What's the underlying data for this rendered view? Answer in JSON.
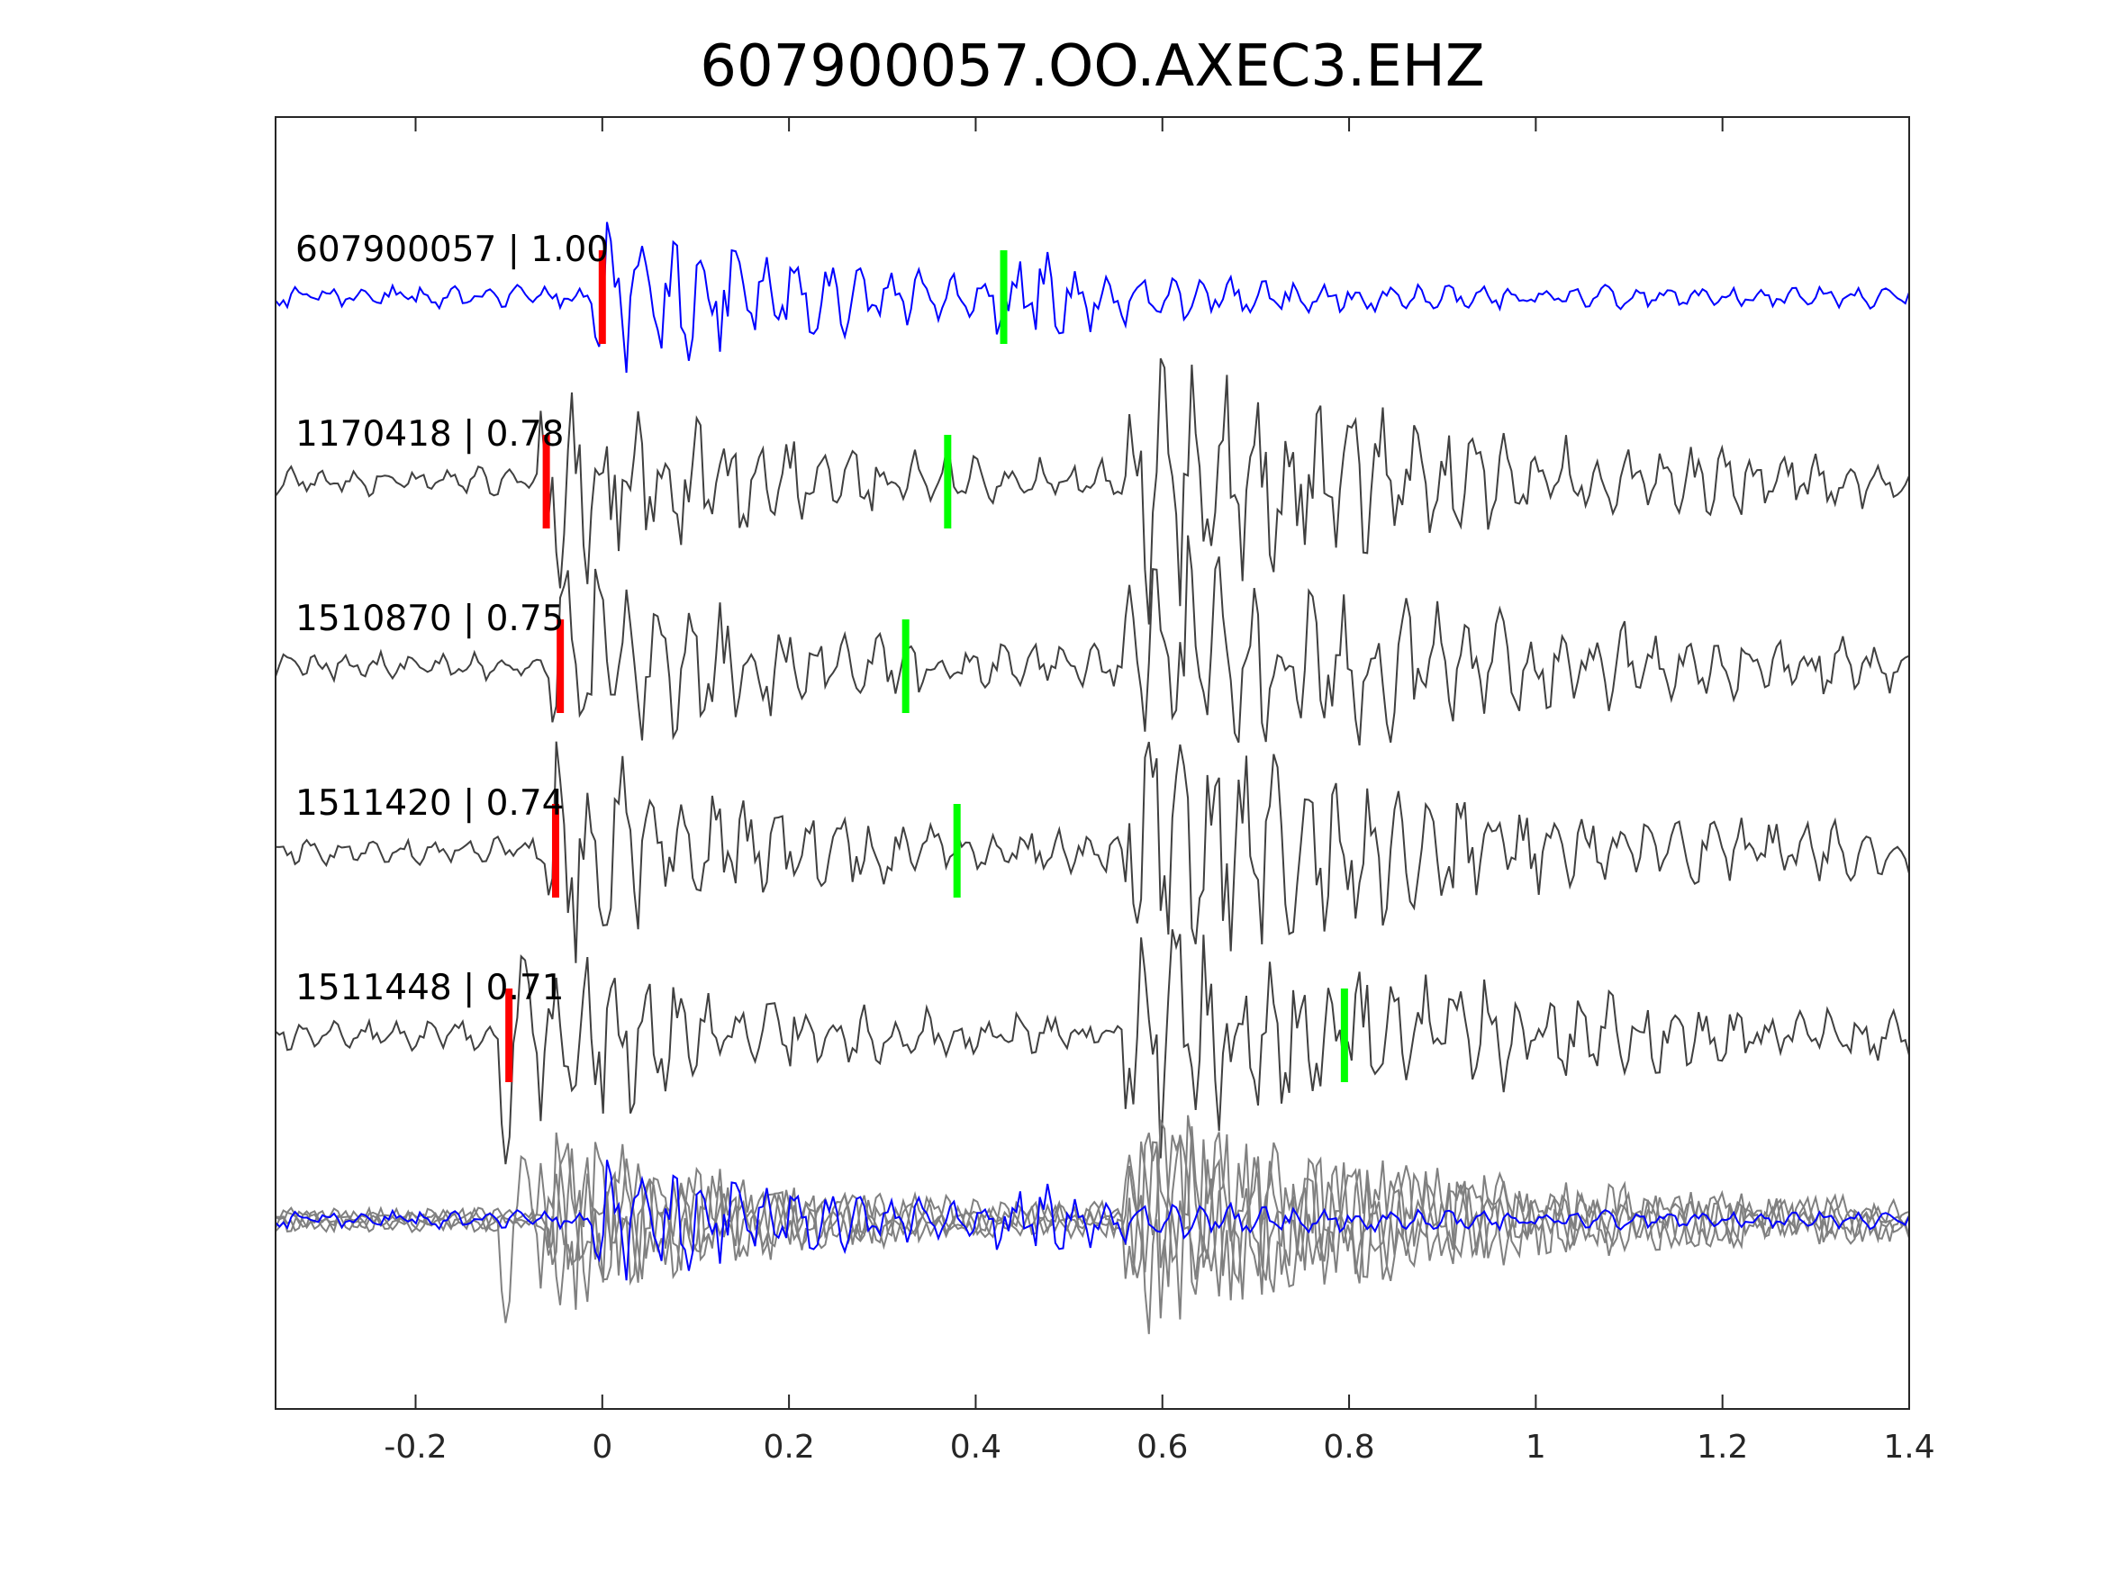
{
  "chart_data": {
    "type": "line",
    "title": "607900057.OO.AXEC3.EHZ",
    "xlabel": "",
    "ylabel": "",
    "xlim": [
      -0.35,
      1.4
    ],
    "x_ticks": [
      -0.2,
      0,
      0.2,
      0.4,
      0.6,
      0.8,
      1,
      1.2,
      1.4
    ],
    "x_tick_labels": [
      "-0.2",
      "0",
      "0.2",
      "0.4",
      "0.6",
      "0.8",
      "1",
      "1.2",
      "1.4"
    ],
    "grid": false,
    "legend": "none",
    "colors": {
      "template": "#0000ff",
      "matches": "#404040",
      "overlay": "#808080",
      "p_pick": "#ff0000",
      "s_pick": "#00ff00"
    },
    "series": [
      {
        "name": "607900057",
        "label": "607900057 | 1.00",
        "cc": 1.0,
        "color": "#0000ff",
        "p_pick": 0.0,
        "s_pick": 0.43,
        "seed": 11
      },
      {
        "name": "1170418",
        "label": "1170418 | 0.78",
        "cc": 0.78,
        "color": "#404040",
        "p_pick": -0.06,
        "s_pick": 0.37,
        "seed": 23
      },
      {
        "name": "1510870",
        "label": "1510870 | 0.75",
        "cc": 0.75,
        "color": "#404040",
        "p_pick": -0.045,
        "s_pick": 0.325,
        "seed": 37
      },
      {
        "name": "1511420",
        "label": "1511420 | 0.74",
        "cc": 0.74,
        "color": "#404040",
        "p_pick": -0.05,
        "s_pick": 0.38,
        "seed": 41
      },
      {
        "name": "1511448",
        "label": "1511448 | 0.71",
        "cc": 0.71,
        "color": "#404040",
        "p_pick": -0.1,
        "s_pick": 0.795,
        "seed": 53
      }
    ]
  }
}
